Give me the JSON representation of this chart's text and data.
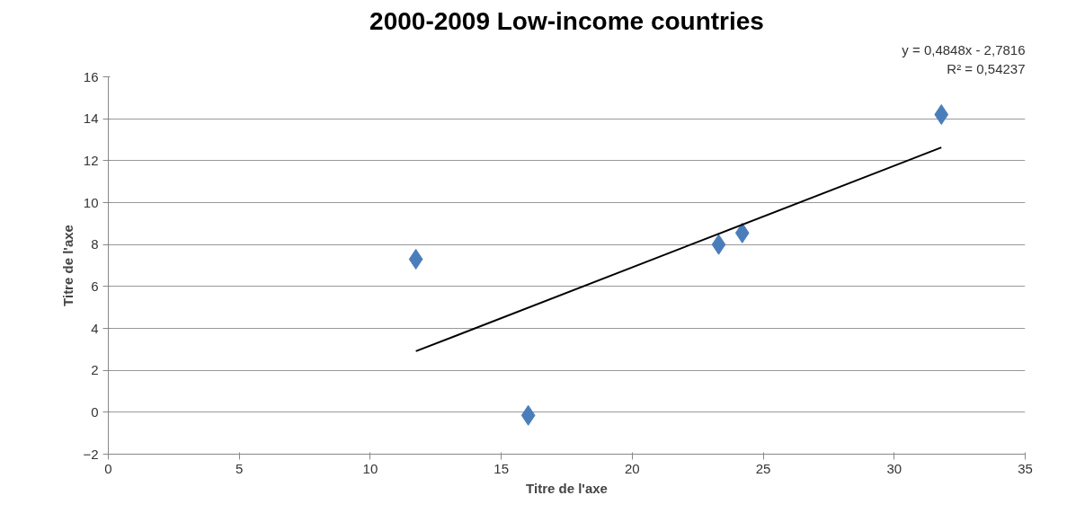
{
  "chart_data": {
    "type": "scatter",
    "title": "2000-2009 Low-income countries",
    "xlabel": "Titre de l'axe",
    "ylabel": "Titre de l'axe",
    "xlim": [
      0,
      35
    ],
    "xticks": [
      0,
      5,
      10,
      15,
      20,
      25,
      30,
      35
    ],
    "ylim": [
      -2,
      16
    ],
    "yticks": [
      -2,
      0,
      2,
      4,
      6,
      8,
      10,
      12,
      14,
      16
    ],
    "grid": "y",
    "marker": "diamond",
    "annotations": [
      "y = 0,4848x - 2,7816",
      "R² = 0,54237"
    ],
    "series": [
      {
        "color": "#4a7ebb",
        "x": [
          11.74,
          16.03,
          23.3,
          24.2,
          31.8
        ],
        "values": [
          7.3,
          -0.15,
          8.0,
          8.55,
          14.2
        ]
      },
      {
        "type": "line",
        "color": "#000000",
        "marker": "none",
        "line_style": "solid",
        "x": [
          11.74,
          31.8
        ],
        "values": [
          2.91,
          12.63
        ]
      }
    ]
  }
}
